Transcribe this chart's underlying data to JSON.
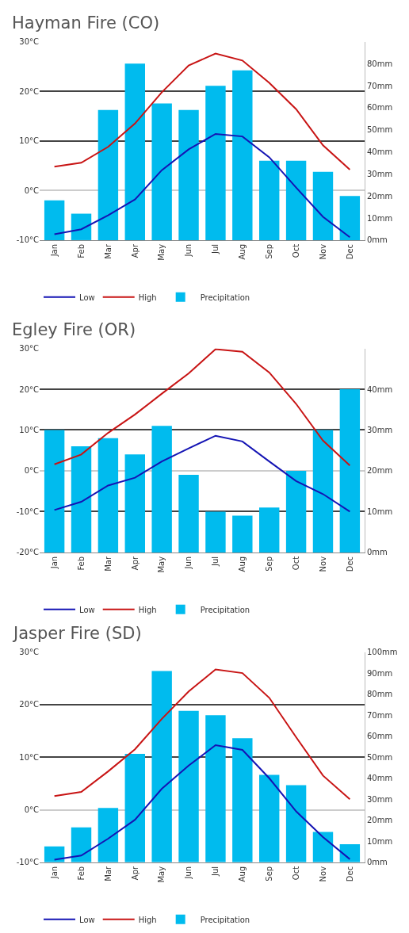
{
  "chart_data": [
    {
      "type": "bar",
      "title": "Hayman Fire (CO)",
      "categories": [
        "Jan",
        "Feb",
        "Mar",
        "Apr",
        "May",
        "Jun",
        "Jul",
        "Aug",
        "Sep",
        "Oct",
        "Nov",
        "Dec"
      ],
      "series": [
        {
          "name": "Low",
          "type": "line",
          "color": "#1414b4",
          "values": [
            -8.8,
            -7.8,
            -5,
            -1.8,
            4.1,
            8.3,
            11.4,
            10.9,
            6.7,
            0.6,
            -5.3,
            -9.4
          ]
        },
        {
          "name": "High",
          "type": "line",
          "color": "#c81414",
          "values": [
            4.8,
            5.6,
            8.8,
            13.5,
            19.8,
            25.2,
            27.6,
            26.2,
            21.7,
            16.4,
            9.1,
            4.2
          ]
        },
        {
          "name": "Precipitation",
          "axis": "y2",
          "color": "#00bbee",
          "values": [
            18,
            12,
            59,
            80,
            62,
            59,
            70,
            77,
            36,
            36,
            31,
            20
          ]
        }
      ],
      "ylim": [
        -10,
        30
      ],
      "yticks": [
        {
          "value": -10,
          "label": "-10°C"
        },
        {
          "value": 0,
          "label": "0°C"
        },
        {
          "value": 10,
          "label": "10°C"
        },
        {
          "value": 20,
          "label": "20°C"
        },
        {
          "value": 30,
          "label": "30°C"
        }
      ],
      "y2lim": [
        0,
        90
      ],
      "y2ticks": [
        {
          "value": 0,
          "label": "0mm"
        },
        {
          "value": 10,
          "label": "10mm"
        },
        {
          "value": 20,
          "label": "20mm"
        },
        {
          "value": 30,
          "label": "30mm"
        },
        {
          "value": 40,
          "label": "40mm"
        },
        {
          "value": 50,
          "label": "50mm"
        },
        {
          "value": 60,
          "label": "60mm"
        },
        {
          "value": 70,
          "label": "70mm"
        },
        {
          "value": 80,
          "label": "80mm"
        }
      ],
      "grid": "y",
      "legend": "bottom"
    },
    {
      "type": "bar",
      "title": "Egley Fire (OR)",
      "categories": [
        "Jan",
        "Feb",
        "Mar",
        "Apr",
        "May",
        "Jun",
        "Jul",
        "Aug",
        "Sep",
        "Oct",
        "Nov",
        "Dec"
      ],
      "series": [
        {
          "name": "Low",
          "type": "line",
          "color": "#1414b4",
          "values": [
            -9.6,
            -7.6,
            -3.6,
            -1.7,
            2.3,
            5.5,
            8.6,
            7.2,
            2.3,
            -2.5,
            -5.7,
            -10
          ]
        },
        {
          "name": "High",
          "type": "line",
          "color": "#c81414",
          "values": [
            1.6,
            4,
            9.3,
            13.8,
            18.9,
            23.9,
            29.8,
            29.2,
            24.1,
            16.4,
            7.4,
            1.3
          ]
        },
        {
          "name": "Precipitation",
          "axis": "y2",
          "color": "#00bbee",
          "values": [
            30,
            26,
            28,
            24,
            31,
            19,
            10,
            9,
            11,
            20,
            30,
            40
          ]
        }
      ],
      "ylim": [
        -20,
        30
      ],
      "yticks": [
        {
          "value": -20,
          "label": "-20°C"
        },
        {
          "value": -10,
          "label": "-10°C"
        },
        {
          "value": 0,
          "label": "0°C"
        },
        {
          "value": 10,
          "label": "10°C"
        },
        {
          "value": 20,
          "label": "20°C"
        },
        {
          "value": 30,
          "label": "30°C"
        }
      ],
      "y2lim": [
        0,
        50
      ],
      "y2ticks": [
        {
          "value": 0,
          "label": "0mm"
        },
        {
          "value": 10,
          "label": "10mm"
        },
        {
          "value": 20,
          "label": "20mm"
        },
        {
          "value": 30,
          "label": "30mm"
        },
        {
          "value": 40,
          "label": "40mm"
        }
      ],
      "grid": "y",
      "legend": "bottom"
    },
    {
      "type": "bar",
      "title": "Jasper Fire (SD)",
      "categories": [
        "Jan",
        "Feb",
        "Mar",
        "Apr",
        "May",
        "Jun",
        "Jul",
        "Aug",
        "Sep",
        "Oct",
        "Nov",
        "Dec"
      ],
      "series": [
        {
          "name": "Low",
          "type": "line",
          "color": "#1414b4",
          "values": [
            -9.5,
            -8.7,
            -5.5,
            -1.9,
            4,
            8.4,
            12.3,
            11.4,
            6,
            -0.3,
            -5.2,
            -9.4
          ]
        },
        {
          "name": "High",
          "type": "line",
          "color": "#c81414",
          "values": [
            2.6,
            3.4,
            7.3,
            11.5,
            17.3,
            22.5,
            26.7,
            26,
            21.3,
            13.8,
            6.5,
            2
          ]
        },
        {
          "name": "Precipitation",
          "axis": "y2",
          "color": "#00bbee",
          "values": [
            7.6,
            16.6,
            25.9,
            51.6,
            91,
            72,
            70,
            59,
            41.6,
            36.7,
            14.5,
            8.6
          ]
        }
      ],
      "ylim": [
        -10,
        30
      ],
      "yticks": [
        {
          "value": -10,
          "label": "-10°C"
        },
        {
          "value": 0,
          "label": "0°C"
        },
        {
          "value": 10,
          "label": "10°C"
        },
        {
          "value": 20,
          "label": "20°C"
        },
        {
          "value": 30,
          "label": "30°C"
        }
      ],
      "y2lim": [
        0,
        100
      ],
      "y2ticks": [
        {
          "value": 0,
          "label": "0mm"
        },
        {
          "value": 10,
          "label": "10mm"
        },
        {
          "value": 20,
          "label": "20mm"
        },
        {
          "value": 30,
          "label": "30mm"
        },
        {
          "value": 40,
          "label": "40mm"
        },
        {
          "value": 50,
          "label": "50mm"
        },
        {
          "value": 60,
          "label": "60mm"
        },
        {
          "value": 70,
          "label": "70mm"
        },
        {
          "value": 80,
          "label": "80mm"
        },
        {
          "value": 90,
          "label": "90mm"
        },
        {
          "value": 100,
          "label": "100mm"
        }
      ],
      "grid": "y",
      "legend": "bottom"
    }
  ]
}
